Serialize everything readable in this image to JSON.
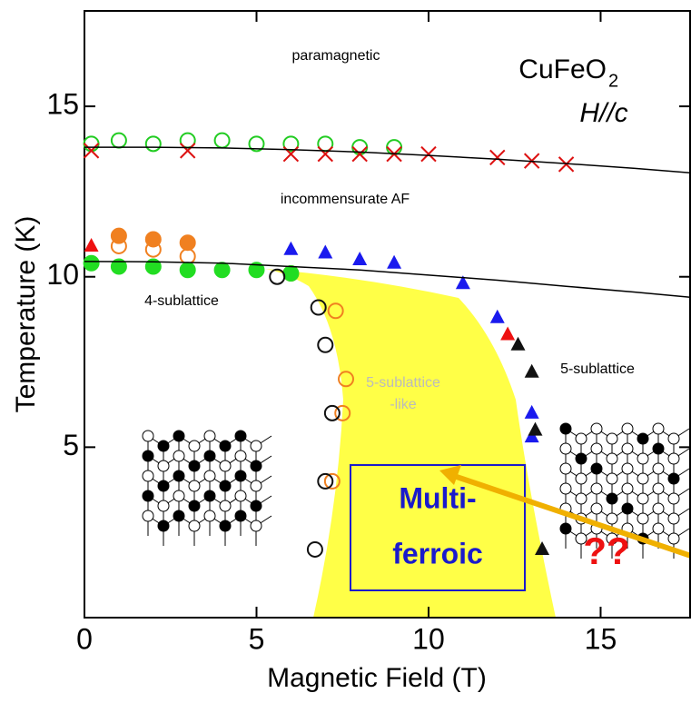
{
  "chart_data": {
    "type": "scatter",
    "xlabel": "Magnetic Field (T)",
    "ylabel": "Temperature (K)",
    "xlim": [
      0,
      17.6
    ],
    "ylim": [
      0,
      17.8
    ],
    "xticks": [
      0,
      5,
      10,
      15
    ],
    "yticks": [
      5,
      10,
      15
    ],
    "annotations": [
      "paramagnetic",
      "CuFeO",
      "2",
      "H//c",
      "incommensurate AF",
      "4-sublattice",
      "5-sublattice",
      "5-sublattice",
      "-like",
      "Multi-",
      "ferroic",
      "??"
    ],
    "series": [
      {
        "marker": "circle",
        "filled": false,
        "color": "#22cc22",
        "x": [
          0.2,
          1,
          2,
          3,
          4,
          5,
          6,
          7,
          8,
          9
        ],
        "values": [
          13.9,
          14.0,
          13.9,
          14.0,
          14.0,
          13.9,
          13.9,
          13.9,
          13.8,
          13.8
        ]
      },
      {
        "marker": "cross",
        "filled": false,
        "color": "#dd1111",
        "x": [
          0.2,
          3,
          6,
          7,
          8,
          9,
          10,
          12,
          13,
          14
        ],
        "values": [
          13.7,
          13.7,
          13.6,
          13.6,
          13.6,
          13.6,
          13.6,
          13.5,
          13.4,
          13.3
        ]
      },
      {
        "marker": "circle",
        "filled": true,
        "color": "#f08020",
        "x": [
          1,
          2,
          3
        ],
        "values": [
          11.2,
          11.1,
          11.0
        ]
      },
      {
        "marker": "circle",
        "filled": false,
        "color": "#f08020",
        "x": [
          1,
          2,
          3,
          6,
          7.3,
          7.6,
          7.5,
          7.2
        ],
        "values": [
          10.9,
          10.8,
          10.6,
          10.1,
          9.0,
          7.0,
          6.0,
          4.0
        ]
      },
      {
        "marker": "triangle",
        "filled": true,
        "color": "#ee1111",
        "x": [
          0.2,
          12.3
        ],
        "values": [
          10.9,
          8.3
        ]
      },
      {
        "marker": "circle",
        "filled": true,
        "color": "#22dd22",
        "x": [
          0.2,
          1,
          2,
          3,
          4,
          5,
          6
        ],
        "values": [
          10.4,
          10.3,
          10.3,
          10.2,
          10.2,
          10.2,
          10.1
        ]
      },
      {
        "marker": "triangle",
        "filled": true,
        "color": "#1a1aee",
        "x": [
          6,
          7,
          8,
          9,
          11,
          12,
          13,
          13
        ],
        "values": [
          10.8,
          10.7,
          10.5,
          10.4,
          9.8,
          8.8,
          6.0,
          5.3
        ]
      },
      {
        "marker": "triangle",
        "filled": true,
        "color": "#111111",
        "x": [
          12.6,
          13,
          13.1,
          13.3
        ],
        "values": [
          8.0,
          7.2,
          5.5,
          2.0
        ]
      },
      {
        "marker": "circle",
        "filled": false,
        "color": "#111111",
        "x": [
          5.6,
          6.8,
          7,
          7.2,
          7.0,
          6.7
        ],
        "values": [
          10.0,
          9.1,
          8.0,
          6.0,
          4.0,
          2.0
        ]
      },
      {
        "marker": "line",
        "color": "#000000",
        "x": [
          0,
          2,
          4,
          6,
          8,
          10,
          12,
          14,
          16,
          17.6
        ],
        "values": [
          13.8,
          13.8,
          13.78,
          13.73,
          13.66,
          13.56,
          13.45,
          13.32,
          13.18,
          13.05
        ]
      },
      {
        "marker": "line",
        "color": "#000000",
        "x": [
          0,
          2,
          4,
          6,
          8,
          10,
          12,
          14,
          16,
          17.6
        ],
        "values": [
          10.45,
          10.44,
          10.4,
          10.3,
          10.2,
          10.05,
          9.9,
          9.72,
          9.55,
          9.4
        ]
      }
    ]
  }
}
